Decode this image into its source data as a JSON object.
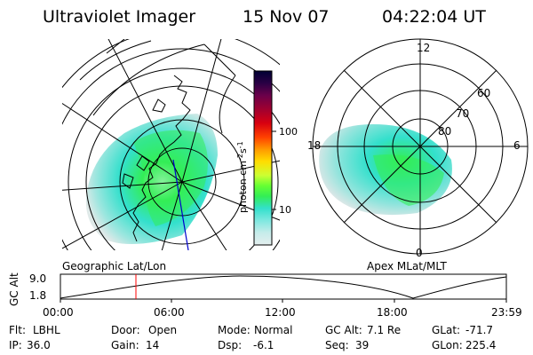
{
  "header": {
    "instrument": "Ultraviolet Imager",
    "date": "15 Nov 07",
    "time": "04:22:04 UT"
  },
  "left_panel": {
    "label": "Geographic Lat/Lon"
  },
  "right_panel": {
    "label": "Apex MLat/MLT",
    "mlt_labels": {
      "top": "12",
      "left": "18",
      "right": "6",
      "bottom": "0"
    },
    "lat_labels": [
      "60",
      "70",
      "80"
    ]
  },
  "colorbar": {
    "unit_label": "photon cm^-2 s^-1",
    "unit_base": "photon cm",
    "unit_exp1": "-2",
    "unit_mid": "s",
    "unit_exp2": "-1",
    "ticks": [
      "100",
      "10"
    ],
    "colors_top_to_bottom": [
      "#000033",
      "#2a0044",
      "#6a004a",
      "#a00030",
      "#d80010",
      "#ff4000",
      "#ff9900",
      "#ffdd00",
      "#ccff33",
      "#66ff33",
      "#33ee55",
      "#33e0cc",
      "#7fe8e0",
      "#c6ecea",
      "#e4eeee"
    ]
  },
  "altitude_plot": {
    "ylabel": "GC Alt",
    "yticks": [
      "9.0",
      "1.8"
    ],
    "xticks": [
      "00:00",
      "06:00",
      "12:00",
      "18:00",
      "23:59"
    ]
  },
  "info": {
    "row1": [
      {
        "key": "Flt:",
        "value": "LBHL"
      },
      {
        "key": "Door:",
        "value": "Open"
      },
      {
        "key": "Mode:",
        "value": "Normal"
      },
      {
        "key": "GC Alt:",
        "value": "7.1 Re"
      },
      {
        "key": "GLat:",
        "value": "-71.7"
      }
    ],
    "row2": [
      {
        "key": "IP:",
        "value": "36.0"
      },
      {
        "key": "Gain:",
        "value": "14"
      },
      {
        "key": "Dsp:",
        "value": "-6.1"
      },
      {
        "key": "Seq:",
        "value": "39"
      },
      {
        "key": "GLon:",
        "value": "225.4"
      }
    ]
  },
  "colors": {
    "aurora_low": "#33e0cc",
    "aurora_high": "#33ee55",
    "time_marker": "#ff0000",
    "meridian": "#0000cc"
  }
}
